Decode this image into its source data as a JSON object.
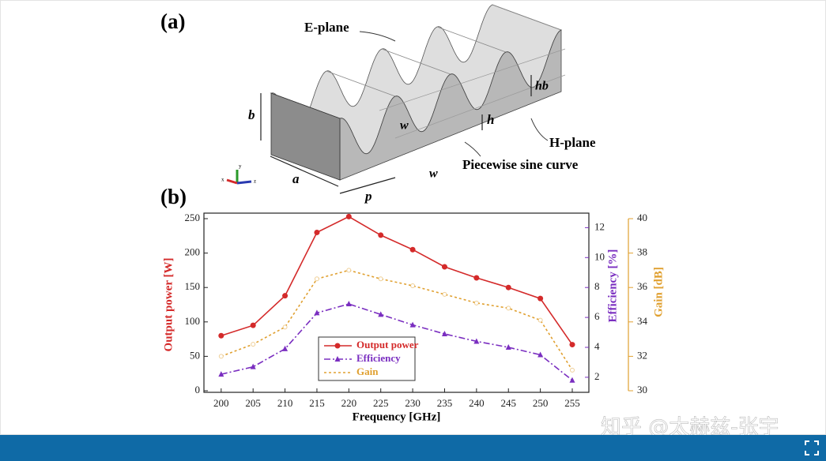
{
  "figure_a": {
    "panel_label": "(a)",
    "e_plane": "E-plane",
    "h_plane": "H-plane",
    "hb": "hb",
    "h": "h",
    "w1": "w",
    "w2": "w",
    "b": "b",
    "a": "a",
    "p": "p",
    "curve": "Piecewise sine curve",
    "gizmo_labels": [
      "y",
      "x",
      "z"
    ]
  },
  "chart_data": {
    "type": "line",
    "panel_label": "(b)",
    "x_label": "Frequency [GHz]",
    "y_label": "Output power [W]",
    "y2_label": "Efficiency [%]",
    "y3_label": "Gain [dB]",
    "x": [
      200,
      205,
      210,
      215,
      220,
      225,
      230,
      235,
      240,
      245,
      250,
      255
    ],
    "xlim": [
      197.3,
      257.6
    ],
    "xticks": [
      200,
      205,
      210,
      215,
      220,
      225,
      230,
      235,
      240,
      245,
      250,
      255
    ],
    "ylim": [
      0,
      250
    ],
    "yticks": [
      0,
      50,
      100,
      150,
      200,
      250
    ],
    "y2lim": [
      1.1,
      12.6
    ],
    "y2ticks": [
      2,
      4,
      6,
      8,
      10,
      12
    ],
    "y3lim": [
      30,
      40
    ],
    "y3ticks": [
      30,
      32,
      34,
      36,
      38,
      40
    ],
    "series": [
      {
        "name": "Output power",
        "color": "#d42a2a",
        "axis": "y",
        "values": [
          80,
          95,
          138,
          230,
          253,
          226,
          205,
          180,
          164,
          150,
          134,
          67
        ]
      },
      {
        "name": "Efficiency",
        "color": "#7a2ec0",
        "axis": "y2",
        "values": [
          2.2,
          2.7,
          3.9,
          6.3,
          6.9,
          6.2,
          5.5,
          4.9,
          4.4,
          4.0,
          3.5,
          1.8
        ]
      },
      {
        "name": "Gain",
        "color": "#e0a030",
        "axis": "y3",
        "values": [
          32.0,
          32.7,
          33.7,
          36.5,
          37.0,
          36.5,
          36.1,
          35.6,
          35.1,
          34.8,
          34.1,
          31.2
        ]
      }
    ]
  },
  "watermark": "知乎 @太赫兹-张宇"
}
